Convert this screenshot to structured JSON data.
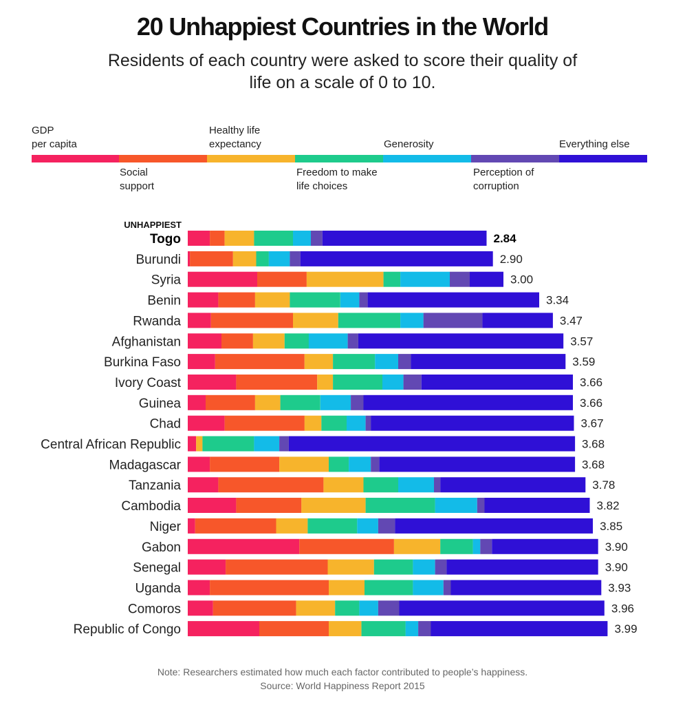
{
  "title": "20 Unhappiest Countries in the World",
  "subtitle": "Residents of each country were asked to score their quality of life on a scale of 0 to 10.",
  "unhappiest_label": "UNHAPPIEST",
  "footer": {
    "note": "Note: Researchers estimated how much each factor contributed to people’s happiness.",
    "source": "Source: World Happiness Report 2015"
  },
  "colors": {
    "gdp": "#f5225f",
    "social": "#f7572a",
    "health": "#f7b42c",
    "freedom": "#1ecb8c",
    "generosity": "#13bbe8",
    "corruption": "#6248b3",
    "else": "#2f10d6"
  },
  "legend": [
    {
      "key": "gdp",
      "label": "GDP\nper capita"
    },
    {
      "key": "social",
      "label": "Social\nsupport"
    },
    {
      "key": "health",
      "label": "Healthy life\nexpectancy"
    },
    {
      "key": "freedom",
      "label": "Freedom to make\nlife choices"
    },
    {
      "key": "generosity",
      "label": "Generosity"
    },
    {
      "key": "corruption",
      "label": "Perception of\ncorruption"
    },
    {
      "key": "else",
      "label": "Everything else"
    }
  ],
  "chart_data": {
    "type": "bar",
    "orientation": "horizontal",
    "stacked": true,
    "categories": [
      "Togo",
      "Burundi",
      "Syria",
      "Benin",
      "Rwanda",
      "Afghanistan",
      "Burkina Faso",
      "Ivory Coast",
      "Guinea",
      "Chad",
      "Central African Republic",
      "Madagascar",
      "Tanzania",
      "Cambodia",
      "Niger",
      "Gabon",
      "Senegal",
      "Uganda",
      "Comoros",
      "Republic of Congo"
    ],
    "totals": [
      2.84,
      2.9,
      3.0,
      3.34,
      3.47,
      3.57,
      3.59,
      3.66,
      3.66,
      3.67,
      3.68,
      3.68,
      3.78,
      3.82,
      3.85,
      3.9,
      3.9,
      3.93,
      3.96,
      3.99
    ],
    "total_labels": [
      "2.84",
      "2.90",
      "3.00",
      "3.34",
      "3.47",
      "3.57",
      "3.59",
      "3.66",
      "3.66",
      "3.67",
      "3.68",
      "3.68",
      "3.78",
      "3.82",
      "3.85",
      "3.90",
      "3.90",
      "3.93",
      "3.96",
      "3.99"
    ],
    "series": [
      {
        "name": "GDP per capita",
        "key": "gdp",
        "values": [
          0.21,
          0.02,
          0.66,
          0.29,
          0.22,
          0.32,
          0.26,
          0.46,
          0.17,
          0.35,
          0.08,
          0.21,
          0.29,
          0.46,
          0.07,
          1.06,
          0.36,
          0.21,
          0.24,
          0.68
        ]
      },
      {
        "name": "Social support",
        "key": "social",
        "values": [
          0.14,
          0.41,
          0.47,
          0.35,
          0.78,
          0.3,
          0.85,
          0.77,
          0.47,
          0.76,
          0.0,
          0.66,
          1.0,
          0.62,
          0.77,
          0.9,
          0.97,
          1.13,
          0.79,
          0.66
        ]
      },
      {
        "name": "Healthy life expectancy",
        "key": "health",
        "values": [
          0.28,
          0.22,
          0.73,
          0.33,
          0.43,
          0.3,
          0.27,
          0.15,
          0.24,
          0.16,
          0.06,
          0.47,
          0.38,
          0.61,
          0.3,
          0.44,
          0.44,
          0.34,
          0.37,
          0.31
        ]
      },
      {
        "name": "Freedom to make life choices",
        "key": "freedom",
        "values": [
          0.37,
          0.12,
          0.16,
          0.48,
          0.59,
          0.23,
          0.4,
          0.47,
          0.38,
          0.24,
          0.49,
          0.19,
          0.33,
          0.66,
          0.47,
          0.31,
          0.37,
          0.46,
          0.23,
          0.42
        ]
      },
      {
        "name": "Generosity",
        "key": "generosity",
        "values": [
          0.17,
          0.2,
          0.47,
          0.18,
          0.22,
          0.37,
          0.22,
          0.2,
          0.29,
          0.18,
          0.24,
          0.21,
          0.34,
          0.4,
          0.2,
          0.07,
          0.21,
          0.29,
          0.18,
          0.12
        ]
      },
      {
        "name": "Perception of corruption",
        "key": "corruption",
        "values": [
          0.11,
          0.1,
          0.19,
          0.08,
          0.56,
          0.1,
          0.12,
          0.17,
          0.12,
          0.05,
          0.09,
          0.08,
          0.06,
          0.07,
          0.16,
          0.11,
          0.11,
          0.07,
          0.2,
          0.12
        ]
      },
      {
        "name": "Everything else",
        "key": "else",
        "values": [
          1.56,
          1.83,
          0.32,
          1.63,
          0.67,
          1.95,
          1.47,
          1.44,
          1.99,
          1.93,
          2.72,
          1.86,
          1.38,
          1.0,
          1.88,
          1.01,
          1.44,
          1.43,
          1.95,
          1.68
        ]
      }
    ],
    "highlight": "Togo"
  }
}
